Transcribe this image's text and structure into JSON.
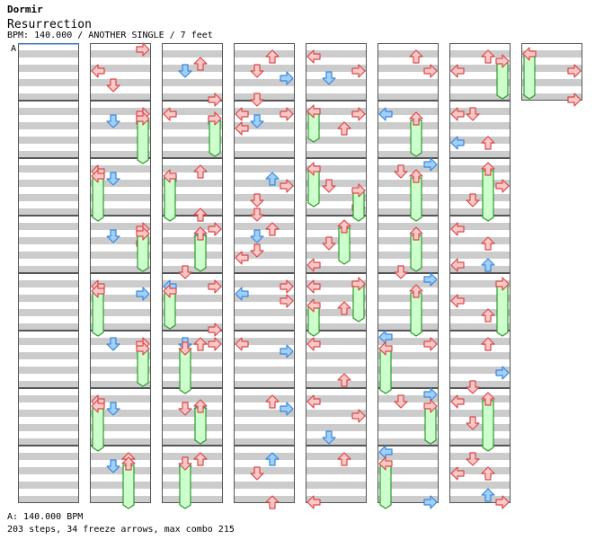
{
  "header": {
    "artist": "Dormir",
    "title": "Resurrection",
    "meta": "BPM: 140.000 / ANOTHER SINGLE / 7 feet"
  },
  "section_marker": "A",
  "footer": {
    "bpm_line": "A: 140.000 BPM",
    "stats_line": "203 steps, 34 freeze arrows, max combo 215"
  },
  "colors": {
    "stripe": "#cccccc",
    "lane_bg": "#ffffff",
    "border": "#555555",
    "arrow_red_fill": "#ffc8c8",
    "arrow_red_stroke": "#d84848",
    "arrow_blue_fill": "#9fd0ff",
    "arrow_blue_stroke": "#3a86d8",
    "freeze_fill": "#ccffcc",
    "freeze_stroke": "#2f9a2f",
    "marker_line": "#2f86ff"
  }
}
